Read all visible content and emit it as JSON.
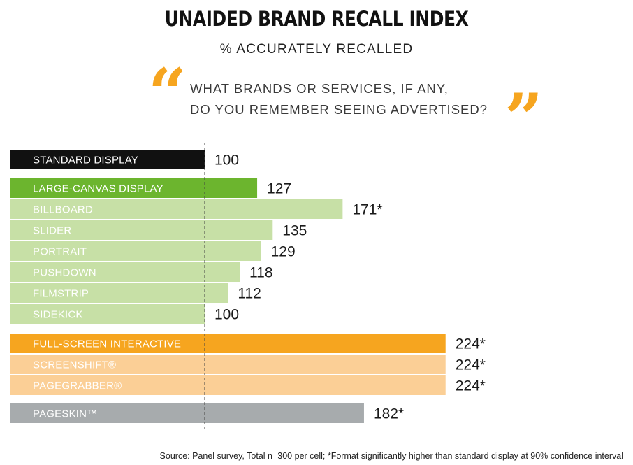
{
  "title": "UNAIDED BRAND RECALL INDEX",
  "subtitle": "% ACCURATELY RECALLED",
  "question": {
    "open_mark": "“",
    "line1": "WHAT BRANDS OR SERVICES, IF ANY,",
    "line2": "DO YOU REMEMBER SEEING ADVERTISED?",
    "close_mark": "”"
  },
  "colors": {
    "standard": "#111111",
    "large_canvas": "#6cb52e",
    "large_canvas_sub": "#c7e0a6",
    "full_screen": "#f6a51f",
    "full_screen_sub": "#fbcf96",
    "pageskin": "#a7abad",
    "accent": "#f6a51f"
  },
  "chart_data": {
    "type": "bar",
    "orientation": "horizontal",
    "baseline": 100,
    "xlim": [
      0,
      250
    ],
    "categories": [
      "STANDARD DISPLAY",
      "LARGE-CANVAS DISPLAY",
      "BILLBOARD",
      "SLIDER",
      "PORTRAIT",
      "PUSHDOWN",
      "FILMSTRIP",
      "SIDEKICK",
      "FULL-SCREEN INTERACTIVE",
      "SCREENSHIFT®",
      "PAGEGRABBER®",
      "PAGESKIN™"
    ],
    "values": [
      100,
      127,
      171,
      135,
      129,
      118,
      112,
      100,
      224,
      224,
      224,
      182
    ],
    "value_labels": [
      "100",
      "127",
      "171*",
      "135",
      "129",
      "118",
      "112",
      "100",
      "224*",
      "224*",
      "224*",
      "182*"
    ],
    "groups": [
      "standard",
      "large_canvas",
      "large_canvas_sub",
      "large_canvas_sub",
      "large_canvas_sub",
      "large_canvas_sub",
      "large_canvas_sub",
      "large_canvas_sub",
      "full_screen",
      "full_screen_sub",
      "full_screen_sub",
      "pageskin"
    ]
  },
  "footer": "Source: Panel survey, Total n=300 per cell; *Format significantly higher than standard display at 90% confidence interval"
}
